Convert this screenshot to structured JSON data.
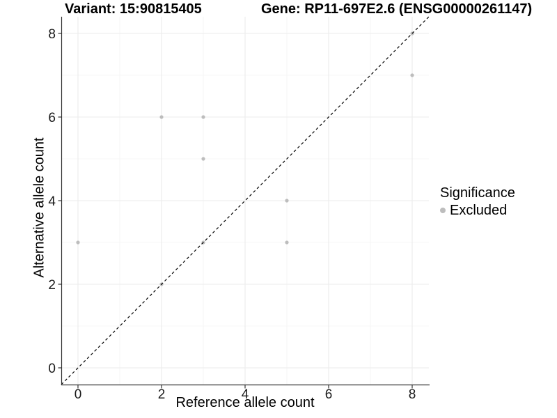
{
  "chart_data": {
    "type": "scatter",
    "titles": [
      {
        "text": "Variant: 15:90815405"
      },
      {
        "text": "Gene: RP11-697E2.6 (ENSG00000261147)"
      }
    ],
    "xlabel": "Reference allele count",
    "ylabel": "Alternative allele count",
    "xlim": [
      -0.4,
      8.4
    ],
    "ylim": [
      -0.4,
      8.4
    ],
    "x_ticks": [
      0,
      2,
      4,
      6,
      8
    ],
    "y_ticks": [
      0,
      2,
      4,
      6,
      8
    ],
    "x_minor_ticks": [
      1,
      3,
      5,
      7
    ],
    "y_minor_ticks": [
      1,
      3,
      5,
      7
    ],
    "grid": true,
    "points": [
      {
        "x": 0,
        "y": 3,
        "significance": "Excluded"
      },
      {
        "x": 2,
        "y": 2,
        "significance": "Excluded"
      },
      {
        "x": 2,
        "y": 6,
        "significance": "Excluded"
      },
      {
        "x": 3,
        "y": 3,
        "significance": "Excluded"
      },
      {
        "x": 3,
        "y": 5,
        "significance": "Excluded"
      },
      {
        "x": 3,
        "y": 6,
        "significance": "Excluded"
      },
      {
        "x": 5,
        "y": 3,
        "significance": "Excluded"
      },
      {
        "x": 5,
        "y": 4,
        "significance": "Excluded"
      },
      {
        "x": 8,
        "y": 7,
        "significance": "Excluded"
      },
      {
        "x": 8,
        "y": 8,
        "significance": "Excluded"
      }
    ],
    "reference_line": {
      "type": "identity",
      "slope": 1,
      "intercept": 0,
      "style": "dashed",
      "color": "#000000"
    },
    "legend": {
      "title": "Significance",
      "position": "right",
      "items": [
        {
          "label": "Excluded",
          "color": "#bdbdbd"
        }
      ]
    },
    "colors": {
      "point": "#bdbdbd",
      "grid_major": "#ebebeb",
      "grid_minor": "#f4f4f4",
      "axis_line": "#333333",
      "tick_label": "#1a1a1a"
    }
  }
}
